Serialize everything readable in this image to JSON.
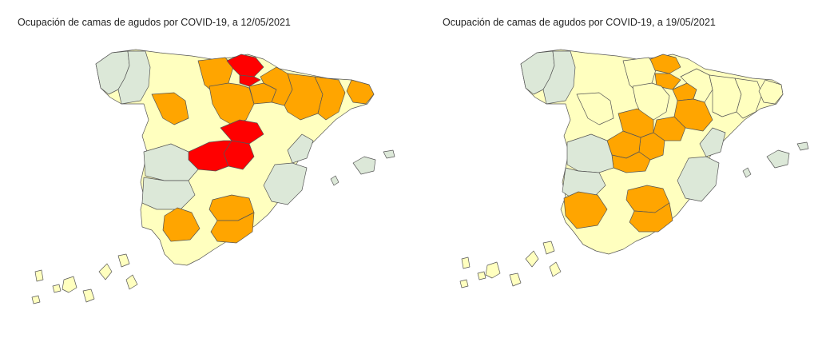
{
  "colors": {
    "very_high": "#ff0000",
    "high": "#ffa500",
    "medium": "#ffffbf",
    "low": "#dce8d8",
    "border": "#555555"
  },
  "maps": [
    {
      "title": "Ocupación de camas de agudos por COVID-19, a 12/05/2021",
      "regions": [
        {
          "name": "A Coruña",
          "level": "low"
        },
        {
          "name": "Lugo",
          "level": "low"
        },
        {
          "name": "Asturias",
          "level": "medium"
        },
        {
          "name": "Cantabria",
          "level": "high"
        },
        {
          "name": "Bizkaia",
          "level": "very_high"
        },
        {
          "name": "Gipuzkoa",
          "level": "very_high"
        },
        {
          "name": "Burgos",
          "level": "high"
        },
        {
          "name": "La Rioja",
          "level": "high"
        },
        {
          "name": "Navarra",
          "level": "high"
        },
        {
          "name": "Huesca",
          "level": "high"
        },
        {
          "name": "Lleida",
          "level": "high"
        },
        {
          "name": "Girona",
          "level": "high"
        },
        {
          "name": "Zamora",
          "level": "high"
        },
        {
          "name": "Segovia",
          "level": "very_high"
        },
        {
          "name": "Madrid",
          "level": "very_high"
        },
        {
          "name": "Ávila",
          "level": "very_high"
        },
        {
          "name": "Cáceres",
          "level": "low"
        },
        {
          "name": "Badajoz",
          "level": "low"
        },
        {
          "name": "Valencia",
          "level": "low"
        },
        {
          "name": "Castellón",
          "level": "low"
        },
        {
          "name": "Sevilla",
          "level": "high"
        },
        {
          "name": "Jaén",
          "level": "high"
        },
        {
          "name": "Granada",
          "level": "high"
        },
        {
          "name": "Baleares",
          "level": "low"
        },
        {
          "name": "Canarias",
          "level": "medium"
        }
      ]
    },
    {
      "title": "Ocupación de camas de agudos por COVID-19, a 19/05/2021",
      "regions": [
        {
          "name": "A Coruña",
          "level": "low"
        },
        {
          "name": "Lugo",
          "level": "low"
        },
        {
          "name": "Asturias",
          "level": "medium"
        },
        {
          "name": "Cantabria",
          "level": "medium"
        },
        {
          "name": "Bizkaia",
          "level": "high"
        },
        {
          "name": "Gipuzkoa",
          "level": "high"
        },
        {
          "name": "Burgos",
          "level": "medium"
        },
        {
          "name": "La Rioja",
          "level": "high"
        },
        {
          "name": "Navarra",
          "level": "medium"
        },
        {
          "name": "Huesca",
          "level": "medium"
        },
        {
          "name": "Lleida",
          "level": "medium"
        },
        {
          "name": "Girona",
          "level": "medium"
        },
        {
          "name": "Zamora",
          "level": "medium"
        },
        {
          "name": "Soria",
          "level": "high"
        },
        {
          "name": "Segovia",
          "level": "high"
        },
        {
          "name": "Madrid",
          "level": "high"
        },
        {
          "name": "Ávila",
          "level": "high"
        },
        {
          "name": "Toledo",
          "level": "high"
        },
        {
          "name": "Zaragoza",
          "level": "high"
        },
        {
          "name": "Cáceres",
          "level": "low"
        },
        {
          "name": "Badajoz",
          "level": "low"
        },
        {
          "name": "Valencia",
          "level": "low"
        },
        {
          "name": "Castellón",
          "level": "low"
        },
        {
          "name": "Sevilla",
          "level": "high"
        },
        {
          "name": "Jaén",
          "level": "high"
        },
        {
          "name": "Granada",
          "level": "high"
        },
        {
          "name": "Baleares",
          "level": "low"
        },
        {
          "name": "Canarias",
          "level": "medium"
        }
      ]
    }
  ]
}
